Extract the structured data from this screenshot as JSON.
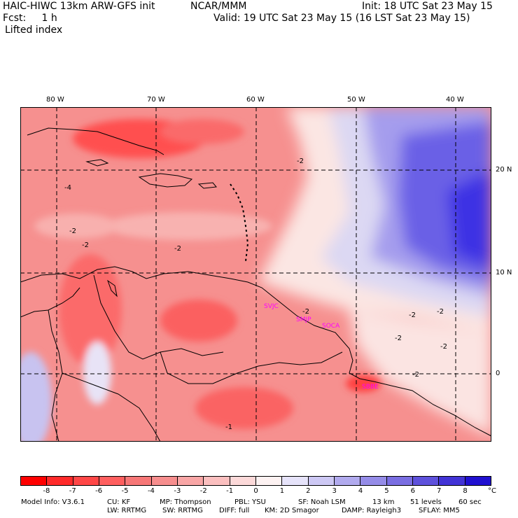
{
  "header": {
    "model_title": "HAIC-HIWC 13km ARW-GFS init",
    "org": "NCAR/MMM",
    "init": "Init: 18 UTC Sat 23 May 15",
    "fcst": "Fcst:     1 h",
    "valid": "Valid: 19 UTC Sat 23 May 15 (16 LST Sat 23 May 15)",
    "field": "Lifted index"
  },
  "map": {
    "lon_labels": [
      "80 W",
      "70 W",
      "60 W",
      "50 W",
      "40 W"
    ],
    "lat_labels": [
      "20 N",
      "10 N",
      "0"
    ],
    "contour_labels": [
      "-2",
      "-2",
      "-2",
      "-2",
      "-2",
      "-2",
      "-2",
      "-2",
      "-2",
      "-2",
      "-1",
      "-4"
    ],
    "stations": [
      "SVJC",
      "SMJP",
      "SOCA",
      "SBBE"
    ],
    "colors": {
      "strong_neg": "#ff4040",
      "neg": "#f58080",
      "weak_neg": "#fbc5c5",
      "neutral": "#fbeceb",
      "weak_pos": "#dcd8f3",
      "pos": "#9f97e8",
      "strong_pos": "#4c40e6",
      "station": "#ff00ff"
    }
  },
  "scale": {
    "labels": [
      "-8",
      "-7",
      "-6",
      "-5",
      "-4",
      "-3",
      "-2",
      "-1",
      "0",
      "1",
      "2",
      "3",
      "4",
      "5",
      "6",
      "7",
      "8"
    ],
    "unit": "°C",
    "colors": [
      "#ff0000",
      "#ff2a2a",
      "#ff4747",
      "#ff5f5f",
      "#f77777",
      "#f78e8e",
      "#f9a6a6",
      "#fbbfbf",
      "#fcd9d9",
      "#fdf2f2",
      "#e6e3fa",
      "#cdc8f4",
      "#b1aaee",
      "#958ce8",
      "#7a6ee2",
      "#5e51dc",
      "#4233d6",
      "#2010d0"
    ]
  },
  "footer": {
    "row1": [
      "Model Info: V3.6.1",
      "CU: KF",
      "MP: Thompson",
      "PBL: YSU",
      "SF: Noah LSM",
      "13 km",
      "51 levels",
      "60 sec"
    ],
    "row2": [
      "LW: RRTMG",
      "SW: RRTMG",
      "DIFF: full",
      "KM: 2D Smagor",
      "DAMP: Rayleigh3",
      "SFLAY: MM5"
    ]
  }
}
